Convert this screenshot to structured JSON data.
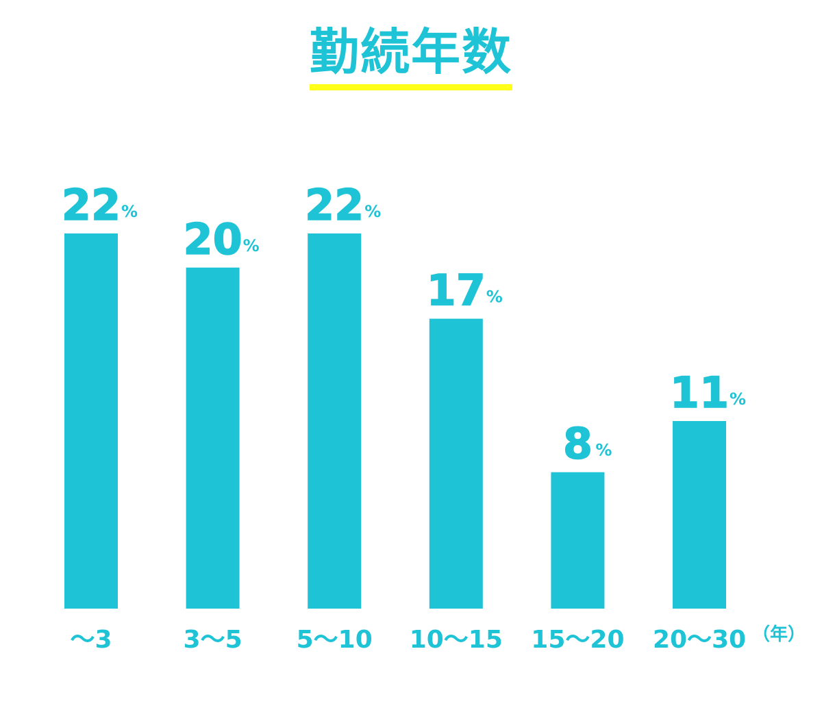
{
  "colors": {
    "bar": "#1fc3d6",
    "text": "#1fc3d6",
    "underline": "#ffff1a",
    "background": "#ffffff"
  },
  "chart_data": {
    "type": "bar",
    "title": "勤続年数",
    "categories": [
      "〜3",
      "3〜5",
      "5〜10",
      "10〜15",
      "15〜20",
      "20〜30"
    ],
    "values": [
      22,
      20,
      22,
      17,
      8,
      11
    ],
    "value_suffix": "%",
    "x_unit": "（年）",
    "ylim": [
      0,
      22
    ],
    "grid": false,
    "legend": "none"
  }
}
